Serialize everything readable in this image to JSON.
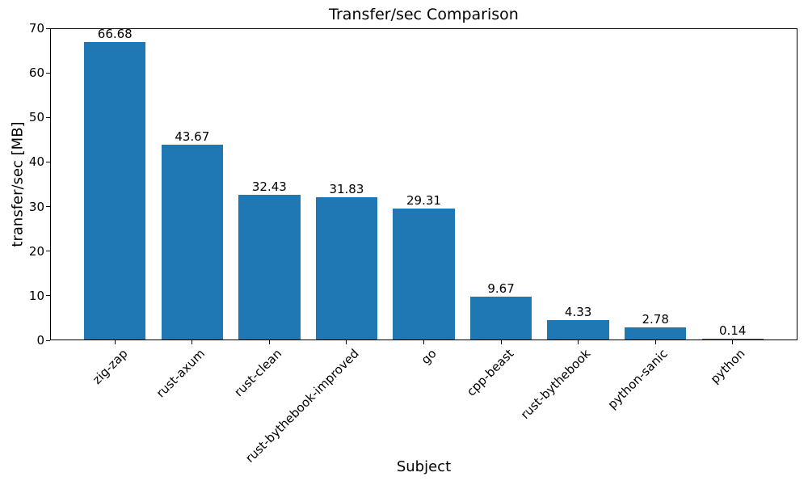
{
  "chart_data": {
    "type": "bar",
    "title": "Transfer/sec Comparison",
    "xlabel": "Subject",
    "ylabel": "transfer/sec [MB]",
    "categories": [
      "zig-zap",
      "rust-axum",
      "rust-clean",
      "rust-bythebook-improved",
      "go",
      "cpp-beast",
      "rust-bythebook",
      "python-sanic",
      "python"
    ],
    "values": [
      66.68,
      43.67,
      32.43,
      31.83,
      29.31,
      9.67,
      4.33,
      2.78,
      0.14
    ],
    "bar_labels": [
      "66.68",
      "43.67",
      "32.43",
      "31.83",
      "29.31",
      "9.67",
      "4.33",
      "2.78",
      "0.14"
    ],
    "ylim": [
      0,
      70
    ],
    "yticks": [
      0,
      10,
      20,
      30,
      40,
      50,
      60,
      70
    ],
    "bar_color": "#1f77b4",
    "axis_color": "#000000",
    "grid": false,
    "legend_position": "none",
    "tick_label_rotation": 45
  }
}
